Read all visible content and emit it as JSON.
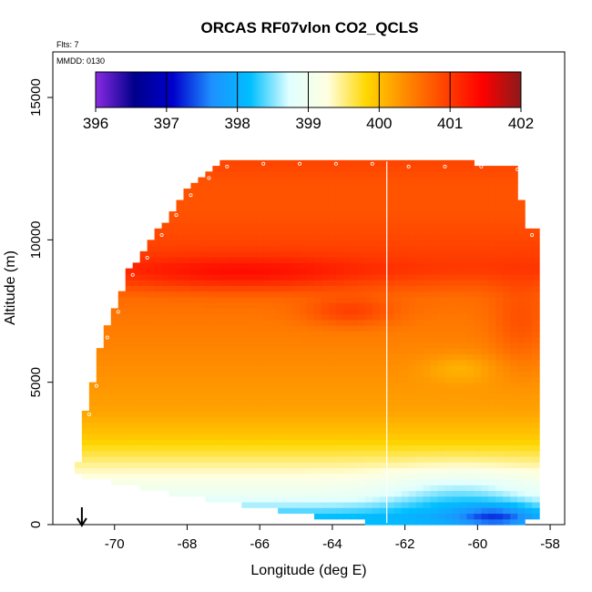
{
  "chart_data": {
    "type": "heatmap",
    "title": "ORCAS RF07vlon CO2_QCLS",
    "subtitle_flts": "Flts: 7",
    "subtitle_mmdd": "MMDD: 0130",
    "xlabel": "Longitude (deg E)",
    "ylabel": "Altitude (m)",
    "xlim": [
      -71.7,
      -57.6
    ],
    "ylim": [
      0,
      16600
    ],
    "x_ticks": [
      -70,
      -68,
      -66,
      -64,
      -62,
      -60,
      -58
    ],
    "x_tick_labels": [
      "-70",
      "-68",
      "-66",
      "-64",
      "-62",
      "-60",
      "-58"
    ],
    "y_ticks": [
      0,
      5000,
      10000,
      15000
    ],
    "y_tick_labels": [
      "0",
      "5000",
      "10000",
      "15000"
    ],
    "colorbar": {
      "min": 396,
      "max": 402,
      "ticks": [
        396,
        397,
        398,
        399,
        400,
        401,
        402
      ],
      "tick_labels": [
        "396",
        "397",
        "398",
        "399",
        "400",
        "401",
        "402"
      ],
      "stops": [
        "#8a2be2",
        "#00008b",
        "#0000cd",
        "#1e90ff",
        "#00bfff",
        "#e0ffff",
        "#ffffe0",
        "#ffd700",
        "#ff8c00",
        "#ff4500",
        "#ff0000",
        "#8b1a1a"
      ]
    },
    "profile_line_longitude": -62.5,
    "marker_longitude": -70.9,
    "altitude_profile": [
      {
        "z": 300,
        "v": 398.2
      },
      {
        "z": 1000,
        "v": 398.9
      },
      {
        "z": 2000,
        "v": 399.4
      },
      {
        "z": 3000,
        "v": 399.9
      },
      {
        "z": 4000,
        "v": 400.2
      },
      {
        "z": 5000,
        "v": 400.3
      },
      {
        "z": 6000,
        "v": 400.4
      },
      {
        "z": 7000,
        "v": 400.5
      },
      {
        "z": 8000,
        "v": 400.6
      },
      {
        "z": 9000,
        "v": 401.0
      },
      {
        "z": 10000,
        "v": 400.9
      },
      {
        "z": 11000,
        "v": 400.8
      },
      {
        "z": 12000,
        "v": 400.8
      },
      {
        "z": 12600,
        "v": 400.9
      }
    ],
    "domain_outline": [
      {
        "x": -71.0,
        "ylow": 1800,
        "yhigh": 2100
      },
      {
        "x": -70.8,
        "ylow": 1700,
        "yhigh": 4000
      },
      {
        "x": -70.6,
        "ylow": 1700,
        "yhigh": 5000
      },
      {
        "x": -70.3,
        "ylow": 1600,
        "yhigh": 6700
      },
      {
        "x": -70.0,
        "ylow": 1500,
        "yhigh": 7600
      },
      {
        "x": -69.6,
        "ylow": 1400,
        "yhigh": 8900
      },
      {
        "x": -69.2,
        "ylow": 1300,
        "yhigh": 9500
      },
      {
        "x": -68.8,
        "ylow": 1200,
        "yhigh": 10300
      },
      {
        "x": -68.4,
        "ylow": 1100,
        "yhigh": 11000
      },
      {
        "x": -68.0,
        "ylow": 1000,
        "yhigh": 11700
      },
      {
        "x": -67.5,
        "ylow": 900,
        "yhigh": 12300
      },
      {
        "x": -67.0,
        "ylow": 800,
        "yhigh": 12700
      },
      {
        "x": -66.0,
        "ylow": 600,
        "yhigh": 12800
      },
      {
        "x": -65.0,
        "ylow": 400,
        "yhigh": 12800
      },
      {
        "x": -64.0,
        "ylow": 200,
        "yhigh": 12800
      },
      {
        "x": -63.0,
        "ylow": 100,
        "yhigh": 12800
      },
      {
        "x": -62.0,
        "ylow": 0,
        "yhigh": 12700
      },
      {
        "x": -61.0,
        "ylow": 0,
        "yhigh": 12700
      },
      {
        "x": -60.0,
        "ylow": 0,
        "yhigh": 12700
      },
      {
        "x": -59.0,
        "ylow": 0,
        "yhigh": 12600
      },
      {
        "x": -58.6,
        "ylow": 100,
        "yhigh": 10300
      },
      {
        "x": -58.3,
        "ylow": 200,
        "yhigh": 10300
      }
    ],
    "anomalies": [
      {
        "x": -66.5,
        "z": 8800,
        "dx": 3.5,
        "dz": 600,
        "dv": 0.4
      },
      {
        "x": -63.5,
        "z": 7500,
        "dx": 1.2,
        "dz": 500,
        "dv": 0.4
      },
      {
        "x": -60.5,
        "z": 1000,
        "dx": 2.0,
        "dz": 900,
        "dv": -0.5
      },
      {
        "x": -59.5,
        "z": 300,
        "dx": 1.0,
        "dz": 400,
        "dv": -0.7
      },
      {
        "x": -60.5,
        "z": 5500,
        "dx": 1.0,
        "dz": 500,
        "dv": -0.25
      },
      {
        "x": -58.8,
        "z": 7000,
        "dx": 0.8,
        "dz": 1500,
        "dv": 0.3
      }
    ]
  }
}
